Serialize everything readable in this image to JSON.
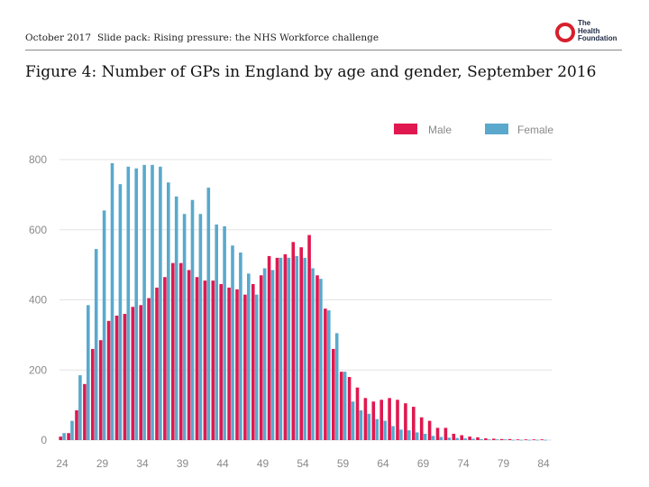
{
  "header": {
    "date": "October 2017",
    "subtitle": "Slide pack: Rising pressure: the NHS Workforce challenge",
    "logo_lines": [
      "The",
      "Health",
      "Foundation"
    ]
  },
  "figure_title": "Figure 4: Number of GPs in England by age and gender, September 2016",
  "colors": {
    "male": "#e0184f",
    "female": "#5aa9cc",
    "grid": "#e3e3e3",
    "brand": "#d71f2b"
  },
  "chart_data": {
    "type": "bar",
    "title": "Figure 4: Number of GPs in England by age and gender, September 2016",
    "xlabel": "",
    "ylabel": "",
    "ylim": [
      0,
      800
    ],
    "yticks": [
      "0",
      "200",
      "400",
      "600",
      "800"
    ],
    "xtick_labels": [
      "24",
      "29",
      "34",
      "39",
      "44",
      "49",
      "54",
      "59",
      "64",
      "69",
      "74",
      "79",
      "84"
    ],
    "categories": [
      24,
      25,
      26,
      27,
      28,
      29,
      30,
      31,
      32,
      33,
      34,
      35,
      36,
      37,
      38,
      39,
      40,
      41,
      42,
      43,
      44,
      45,
      46,
      47,
      48,
      49,
      50,
      51,
      52,
      53,
      54,
      55,
      56,
      57,
      58,
      59,
      60,
      61,
      62,
      63,
      64,
      65,
      66,
      67,
      68,
      69,
      70,
      71,
      72,
      73,
      74,
      75,
      76,
      77,
      78,
      79,
      80,
      81,
      82,
      83,
      84
    ],
    "legend": {
      "position": "top-right",
      "entries": [
        "Male",
        "Female"
      ]
    },
    "series": [
      {
        "name": "Male",
        "values": [
          10,
          20,
          85,
          160,
          260,
          285,
          340,
          355,
          360,
          380,
          385,
          405,
          435,
          465,
          505,
          505,
          485,
          465,
          455,
          455,
          445,
          435,
          430,
          415,
          445,
          470,
          525,
          520,
          530,
          565,
          550,
          585,
          470,
          375,
          260,
          195,
          180,
          150,
          120,
          110,
          115,
          120,
          115,
          105,
          95,
          65,
          55,
          35,
          35,
          18,
          14,
          10,
          8,
          5,
          4,
          3,
          3,
          2,
          2,
          2,
          2
        ]
      },
      {
        "name": "Female",
        "values": [
          20,
          55,
          185,
          385,
          545,
          655,
          790,
          730,
          780,
          775,
          785,
          785,
          780,
          735,
          695,
          645,
          685,
          645,
          720,
          615,
          610,
          555,
          535,
          475,
          415,
          490,
          485,
          520,
          520,
          525,
          520,
          490,
          460,
          370,
          305,
          195,
          110,
          85,
          75,
          60,
          55,
          40,
          30,
          28,
          22,
          18,
          12,
          9,
          7,
          6,
          5,
          4,
          3,
          2,
          2,
          2,
          1,
          1,
          1,
          1,
          1
        ]
      }
    ]
  }
}
